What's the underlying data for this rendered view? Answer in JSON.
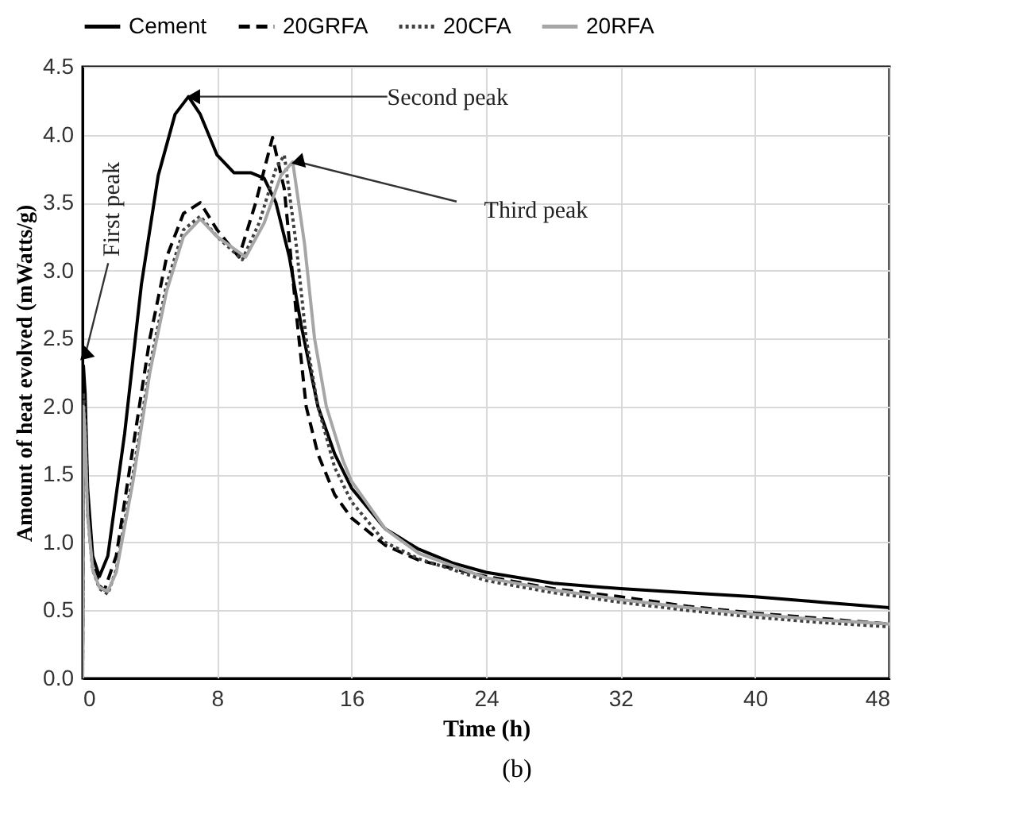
{
  "chart_data": {
    "type": "line",
    "xlabel": "Time (h)",
    "ylabel": "Amount of heat evolved (mWatts/g)",
    "annotations": [
      {
        "text": "First peak",
        "x": 0.2,
        "y": 2.4
      },
      {
        "text": "Second peak",
        "x": 6.6,
        "y": 4.28
      },
      {
        "text": "Third peak",
        "x": 12.8,
        "y": 3.8
      },
      "(b)"
    ],
    "series": [
      {
        "name": "Cement",
        "color": "#000000",
        "line_style": "solid",
        "x": [
          0,
          0.05,
          0.15,
          0.3,
          0.6,
          1.0,
          1.5,
          2.5,
          3.5,
          4.5,
          5.5,
          6.3,
          7,
          8,
          9,
          10,
          10.8,
          11.5,
          12.3,
          13,
          14,
          15,
          16,
          18,
          20,
          22,
          24,
          28,
          32,
          36,
          40,
          44,
          48
        ],
        "values": [
          0,
          2.3,
          2.1,
          1.4,
          0.9,
          0.75,
          0.9,
          1.8,
          2.9,
          3.7,
          4.15,
          4.28,
          4.15,
          3.85,
          3.72,
          3.72,
          3.68,
          3.5,
          3.1,
          2.6,
          2.0,
          1.65,
          1.4,
          1.1,
          0.95,
          0.85,
          0.78,
          0.7,
          0.66,
          0.63,
          0.6,
          0.56,
          0.52
        ]
      },
      {
        "name": "20GRFA",
        "color": "#000000",
        "line_style": "dashed",
        "x": [
          0,
          0.05,
          0.15,
          0.3,
          0.6,
          1.0,
          1.3,
          2,
          3,
          4,
          5,
          6,
          7,
          8,
          9.3,
          10.3,
          11.3,
          12,
          12.7,
          13.3,
          14,
          15,
          16,
          18,
          20,
          24,
          28,
          32,
          36,
          40,
          44,
          48
        ],
        "values": [
          0,
          2.2,
          2.0,
          1.3,
          0.85,
          0.68,
          0.65,
          0.9,
          1.7,
          2.5,
          3.1,
          3.42,
          3.5,
          3.3,
          3.1,
          3.5,
          3.98,
          3.6,
          2.7,
          2.0,
          1.65,
          1.35,
          1.18,
          0.98,
          0.87,
          0.75,
          0.66,
          0.6,
          0.53,
          0.48,
          0.44,
          0.4
        ]
      },
      {
        "name": "20CFA",
        "color": "#404040",
        "line_style": "dotted",
        "x": [
          0,
          0.05,
          0.15,
          0.3,
          0.6,
          1.0,
          1.5,
          2,
          3,
          4,
          5,
          6,
          7,
          8,
          9.5,
          10.5,
          11.5,
          12,
          12.7,
          13.3,
          14,
          15,
          16,
          18,
          20,
          24,
          28,
          32,
          36,
          40,
          44,
          48
        ],
        "values": [
          0,
          2.1,
          1.9,
          1.2,
          0.8,
          0.66,
          0.62,
          0.8,
          1.5,
          2.3,
          2.9,
          3.3,
          3.4,
          3.25,
          3.08,
          3.35,
          3.75,
          3.85,
          3.2,
          2.5,
          2.0,
          1.55,
          1.3,
          1.0,
          0.88,
          0.72,
          0.63,
          0.56,
          0.5,
          0.45,
          0.41,
          0.38
        ]
      },
      {
        "name": "20RFA",
        "color": "#a6a6a6",
        "line_style": "solid",
        "x": [
          0,
          0.05,
          0.15,
          0.3,
          0.6,
          1.0,
          1.5,
          2,
          3,
          4,
          5,
          6,
          7,
          8,
          9.7,
          10.8,
          11.8,
          12.5,
          13.2,
          13.8,
          14.5,
          15.5,
          16,
          18,
          20,
          24,
          28,
          32,
          36,
          40,
          44,
          48
        ],
        "values": [
          0,
          2.0,
          1.8,
          1.2,
          0.8,
          0.67,
          0.64,
          0.78,
          1.45,
          2.25,
          2.85,
          3.25,
          3.38,
          3.25,
          3.1,
          3.35,
          3.7,
          3.8,
          3.2,
          2.5,
          2.0,
          1.6,
          1.45,
          1.1,
          0.92,
          0.74,
          0.65,
          0.58,
          0.52,
          0.47,
          0.43,
          0.4
        ]
      }
    ],
    "xlim": [
      0,
      48
    ],
    "xticks": [
      0,
      8,
      16,
      24,
      32,
      40,
      48
    ],
    "ylim": [
      0,
      4.5
    ],
    "yticks": [
      {
        "value": 0,
        "label": "0.0"
      },
      0.5,
      {
        "value": 1,
        "label": "1.0"
      },
      1.5,
      {
        "value": 2,
        "label": "2.0"
      },
      2.5,
      {
        "value": 3,
        "label": "3.0"
      },
      3.5,
      {
        "value": 4,
        "label": "4.0"
      },
      4.5
    ],
    "grid": true,
    "legend": "top",
    "marker": "none"
  }
}
